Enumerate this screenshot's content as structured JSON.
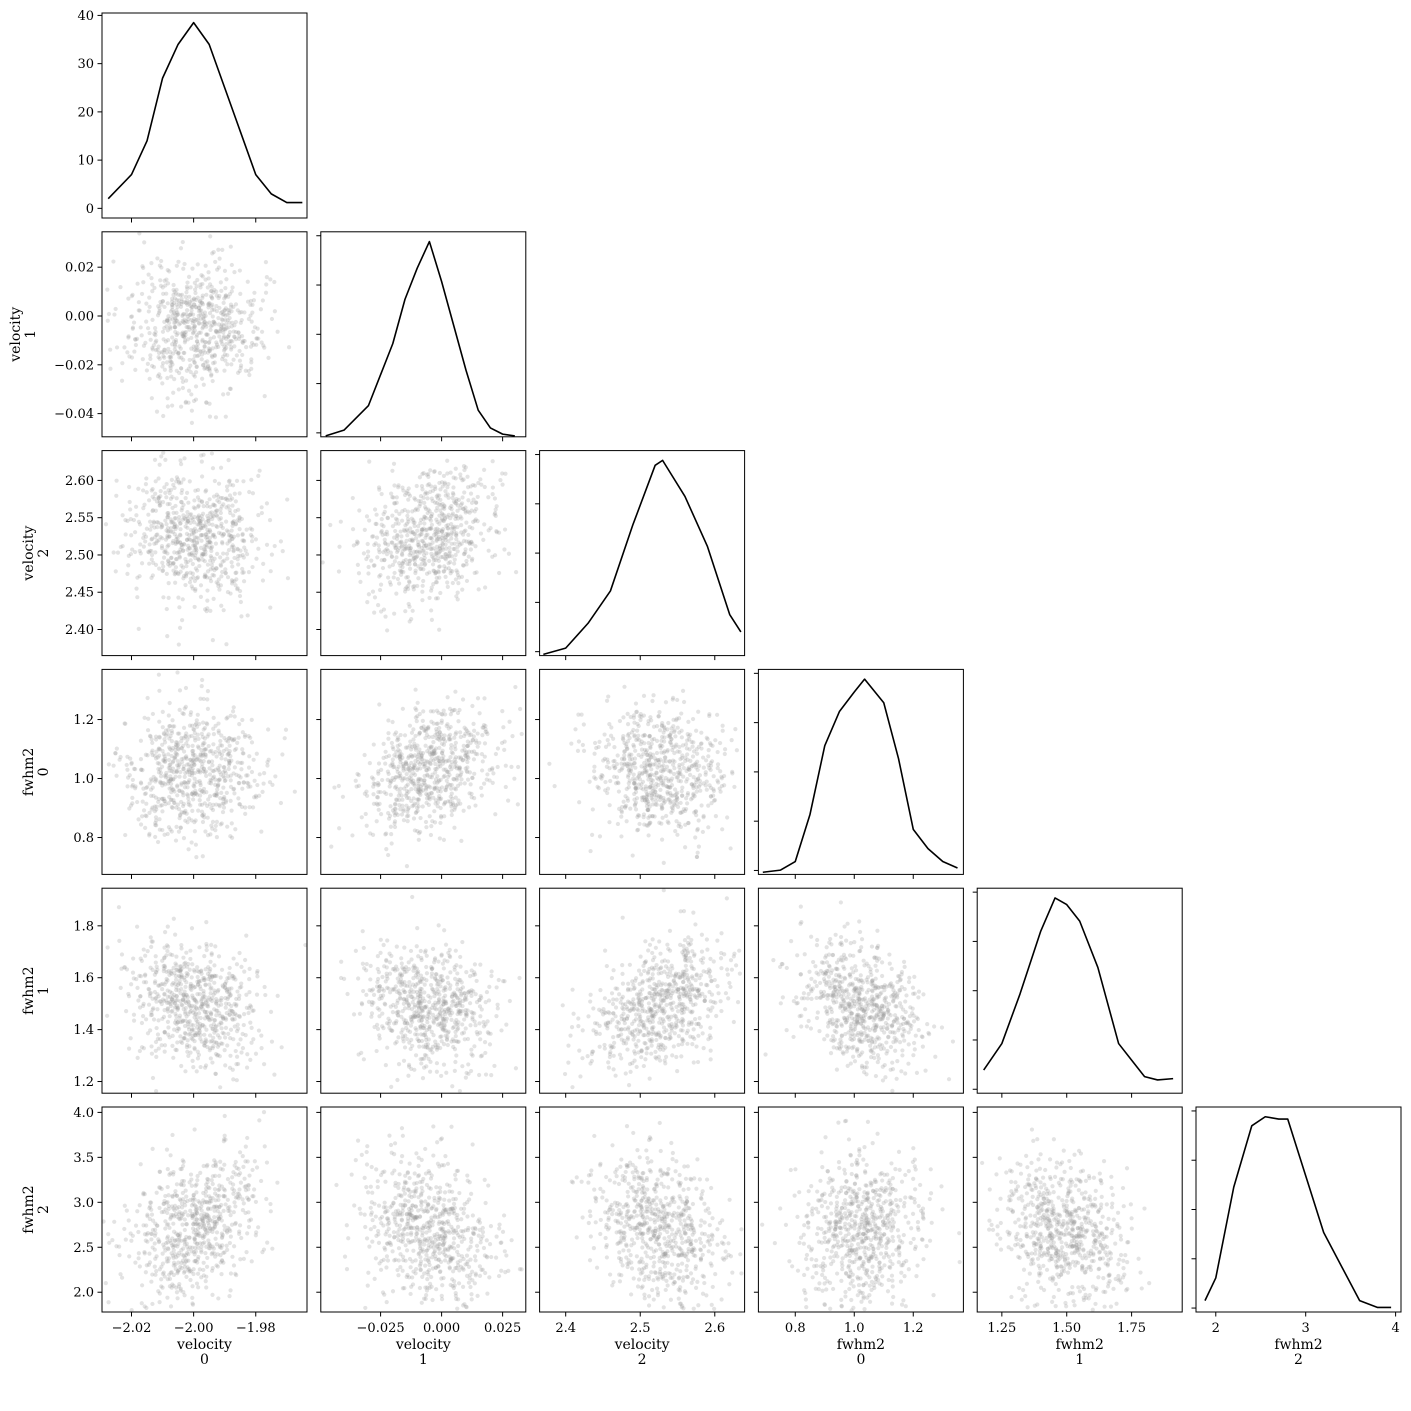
{
  "chart_data": {
    "type": "scatter",
    "layout": "corner",
    "variables": [
      {
        "label": [
          "velocity",
          "0"
        ],
        "range": [
          -2.0295,
          -1.9635
        ],
        "ticks": [
          -2.02,
          -2.0,
          -1.98
        ],
        "tick_labels": [
          "−2.02",
          "−2.00",
          "−1.98"
        ],
        "mean": -2.0,
        "sd": 0.0105
      },
      {
        "label": [
          "velocity",
          "1"
        ],
        "range": [
          -0.0495,
          0.0345
        ],
        "ticks": [
          -0.025,
          0.0,
          0.025
        ],
        "tick_labels": [
          "−0.025",
          "0.000",
          "0.025"
        ],
        "mean": -0.005,
        "sd": 0.0135
      },
      {
        "label": [
          "velocity",
          "2"
        ],
        "range": [
          2.365,
          2.64
        ],
        "ticks": [
          2.4,
          2.5,
          2.6
        ],
        "tick_labels": [
          "2.4",
          "2.5",
          "2.6"
        ],
        "mean": 2.525,
        "sd": 0.045
      },
      {
        "label": [
          "fwhm2",
          "0"
        ],
        "range": [
          0.675,
          1.37
        ],
        "ticks": [
          0.8,
          1.0,
          1.2
        ],
        "tick_labels": [
          "0.8",
          "1.0",
          "1.2"
        ],
        "mean": 1.025,
        "sd": 0.105
      },
      {
        "label": [
          "fwhm2",
          "1"
        ],
        "range": [
          1.155,
          1.945
        ],
        "ticks": [
          1.25,
          1.5,
          1.75
        ],
        "tick_labels": [
          "1.25",
          "1.50",
          "1.75"
        ],
        "mean": 1.49,
        "sd": 0.125
      },
      {
        "label": [
          "fwhm2",
          "2"
        ],
        "range": [
          1.78,
          4.06
        ],
        "ticks": [
          2,
          3,
          4
        ],
        "tick_labels": [
          "2",
          "3",
          "4"
        ],
        "mean": 2.7,
        "sd": 0.42
      }
    ],
    "y_axes": [
      {
        "row": 0,
        "range": [
          -2,
          40.5
        ],
        "ticks": [
          0,
          10,
          20,
          30,
          40
        ],
        "tick_labels": [
          "0",
          "10",
          "20",
          "30",
          "40"
        ]
      },
      {
        "row": 1,
        "range": [
          -0.0495,
          0.0345
        ],
        "ticks": [
          -0.04,
          -0.02,
          0.0,
          0.02
        ],
        "tick_labels": [
          "−0.04",
          "−0.02",
          "0.00",
          "0.02"
        ]
      },
      {
        "row": 2,
        "range": [
          2.365,
          2.64
        ],
        "ticks": [
          2.4,
          2.45,
          2.5,
          2.55,
          2.6
        ],
        "tick_labels": [
          "2.40",
          "2.45",
          "2.50",
          "2.55",
          "2.60"
        ]
      },
      {
        "row": 3,
        "range": [
          0.675,
          1.37
        ],
        "ticks": [
          0.8,
          1.0,
          1.2
        ],
        "tick_labels": [
          "0.8",
          "1.0",
          "1.2"
        ]
      },
      {
        "row": 4,
        "range": [
          1.155,
          1.945
        ],
        "ticks": [
          1.2,
          1.4,
          1.6,
          1.8
        ],
        "tick_labels": [
          "1.2",
          "1.4",
          "1.6",
          "1.8"
        ]
      },
      {
        "row": 5,
        "range": [
          1.78,
          4.06
        ],
        "ticks": [
          2.0,
          2.5,
          3.0,
          3.5,
          4.0
        ],
        "tick_labels": [
          "2.0",
          "2.5",
          "3.0",
          "3.5",
          "4.0"
        ]
      }
    ],
    "correlations": [
      [
        1.0,
        -0.02,
        -0.15,
        0.05,
        -0.3,
        0.3
      ],
      [
        -0.02,
        1.0,
        0.2,
        0.3,
        -0.1,
        -0.3
      ],
      [
        -0.15,
        0.2,
        1.0,
        -0.1,
        0.35,
        -0.3
      ],
      [
        0.05,
        0.3,
        -0.1,
        1.0,
        -0.3,
        0.05
      ],
      [
        -0.3,
        -0.1,
        0.35,
        -0.3,
        1.0,
        -0.25
      ],
      [
        0.3,
        -0.3,
        -0.3,
        0.05,
        -0.25,
        1.0
      ]
    ],
    "diagonal_kde": [
      {
        "x": [
          -2.0275,
          -2.02,
          -2.015,
          -2.01,
          -2.005,
          -2.0,
          -1.995,
          -1.99,
          -1.985,
          -1.98,
          -1.975,
          -1.97,
          -1.965
        ],
        "y": [
          2,
          7,
          14,
          27,
          34,
          38.5,
          34,
          25,
          16,
          7,
          3,
          1.2,
          1.2
        ]
      },
      {
        "x": [
          -0.0475,
          -0.04,
          -0.03,
          -0.02,
          -0.015,
          -0.01,
          -0.005,
          0.0,
          0.005,
          0.01,
          0.015,
          0.02,
          0.025,
          0.03
        ],
        "y": [
          0.2,
          1.5,
          7,
          21,
          31,
          38,
          44,
          35,
          25,
          15,
          6,
          2,
          0.6,
          0.2
        ]
      },
      {
        "x": [
          2.37,
          2.4,
          2.43,
          2.46,
          2.49,
          2.52,
          2.53,
          2.56,
          2.59,
          2.62,
          2.635
        ],
        "y": [
          0.1,
          0.6,
          2.6,
          5.2,
          10.5,
          15.3,
          15.7,
          12.8,
          8.8,
          3.3,
          1.9
        ]
      },
      {
        "x": [
          0.69,
          0.75,
          0.8,
          0.85,
          0.9,
          0.95,
          1.0,
          1.035,
          1.1,
          1.15,
          1.2,
          1.25,
          1.3,
          1.35
        ],
        "y": [
          0.05,
          0.1,
          0.3,
          1.4,
          3.0,
          3.8,
          4.25,
          4.55,
          4.0,
          2.7,
          1.05,
          0.6,
          0.3,
          0.15
        ]
      },
      {
        "x": [
          1.18,
          1.25,
          1.32,
          1.4,
          1.455,
          1.5,
          1.55,
          1.62,
          1.7,
          1.75,
          1.8,
          1.85,
          1.91
        ],
        "y": [
          0.35,
          0.75,
          1.5,
          2.45,
          2.95,
          2.85,
          2.6,
          1.9,
          0.75,
          0.5,
          0.25,
          0.2,
          0.22
        ]
      },
      {
        "x": [
          1.88,
          2.0,
          2.2,
          2.4,
          2.55,
          2.7,
          2.8,
          3.0,
          3.2,
          3.4,
          3.6,
          3.8,
          3.95
        ],
        "y": [
          0.05,
          0.15,
          0.55,
          0.82,
          0.86,
          0.85,
          0.85,
          0.6,
          0.35,
          0.2,
          0.05,
          0.02,
          0.02
        ]
      }
    ],
    "samples_per_panel": 700,
    "marker_color": "#999999",
    "marker_opacity": 0.28,
    "line_color": "#000000"
  }
}
